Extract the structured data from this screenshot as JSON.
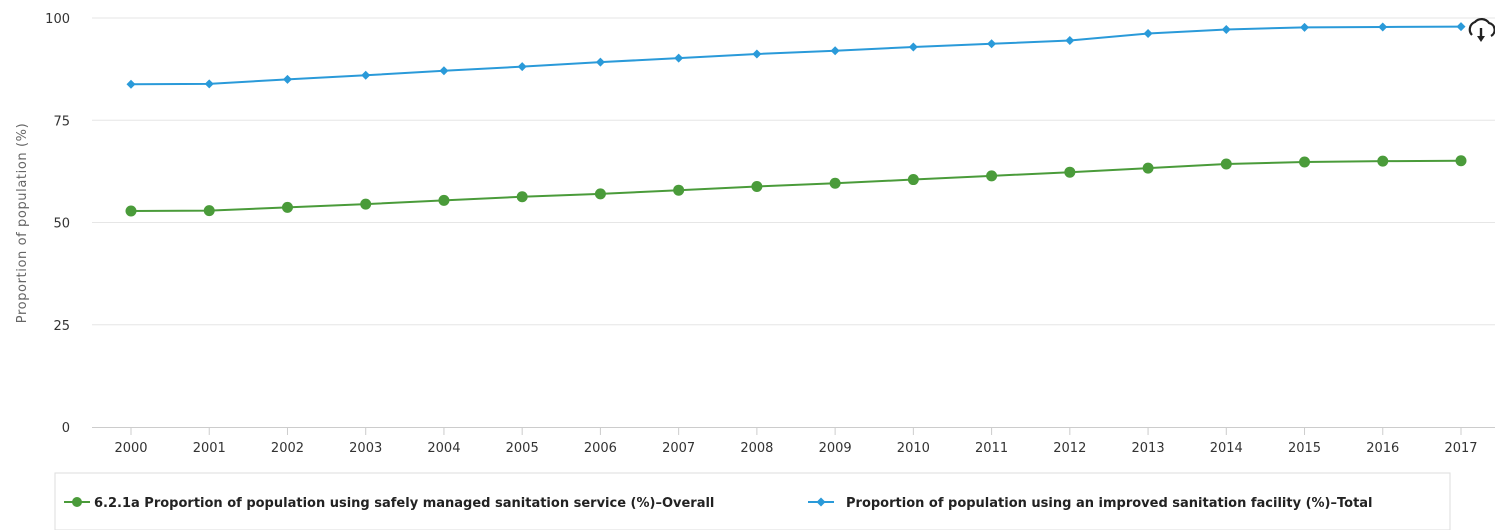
{
  "chart_data": {
    "type": "line",
    "title": "",
    "xlabel": "",
    "ylabel": "Proportion of population (%)",
    "ylim": [
      0,
      100
    ],
    "yticks": [
      0,
      25,
      50,
      75,
      100
    ],
    "grid": true,
    "legend_position": "bottom",
    "categories": [
      "2000",
      "2001",
      "2002",
      "2003",
      "2004",
      "2005",
      "2006",
      "2007",
      "2008",
      "2009",
      "2010",
      "2011",
      "2012",
      "2013",
      "2014",
      "2015",
      "2016",
      "2017"
    ],
    "series": [
      {
        "name": "6.2.1a Proportion of population using safely managed sanitation service (%)–Overall",
        "color": "#4a9b3a",
        "marker": "circle",
        "values": [
          52.8,
          52.9,
          53.7,
          54.5,
          55.4,
          56.3,
          57.0,
          57.9,
          58.8,
          59.6,
          60.5,
          61.4,
          62.3,
          63.3,
          64.3,
          64.8,
          65.0,
          65.1
        ]
      },
      {
        "name": "Proportion of population using an improved sanitation facility (%)–Total",
        "color": "#2a9ad9",
        "marker": "diamond",
        "values": [
          83.8,
          83.9,
          85.0,
          86.0,
          87.1,
          88.1,
          89.2,
          90.2,
          91.2,
          92.0,
          92.9,
          93.7,
          94.5,
          96.2,
          97.2,
          97.7,
          97.8,
          97.9
        ]
      }
    ]
  },
  "toolbar": {
    "download_icon": "download-cloud-icon"
  }
}
